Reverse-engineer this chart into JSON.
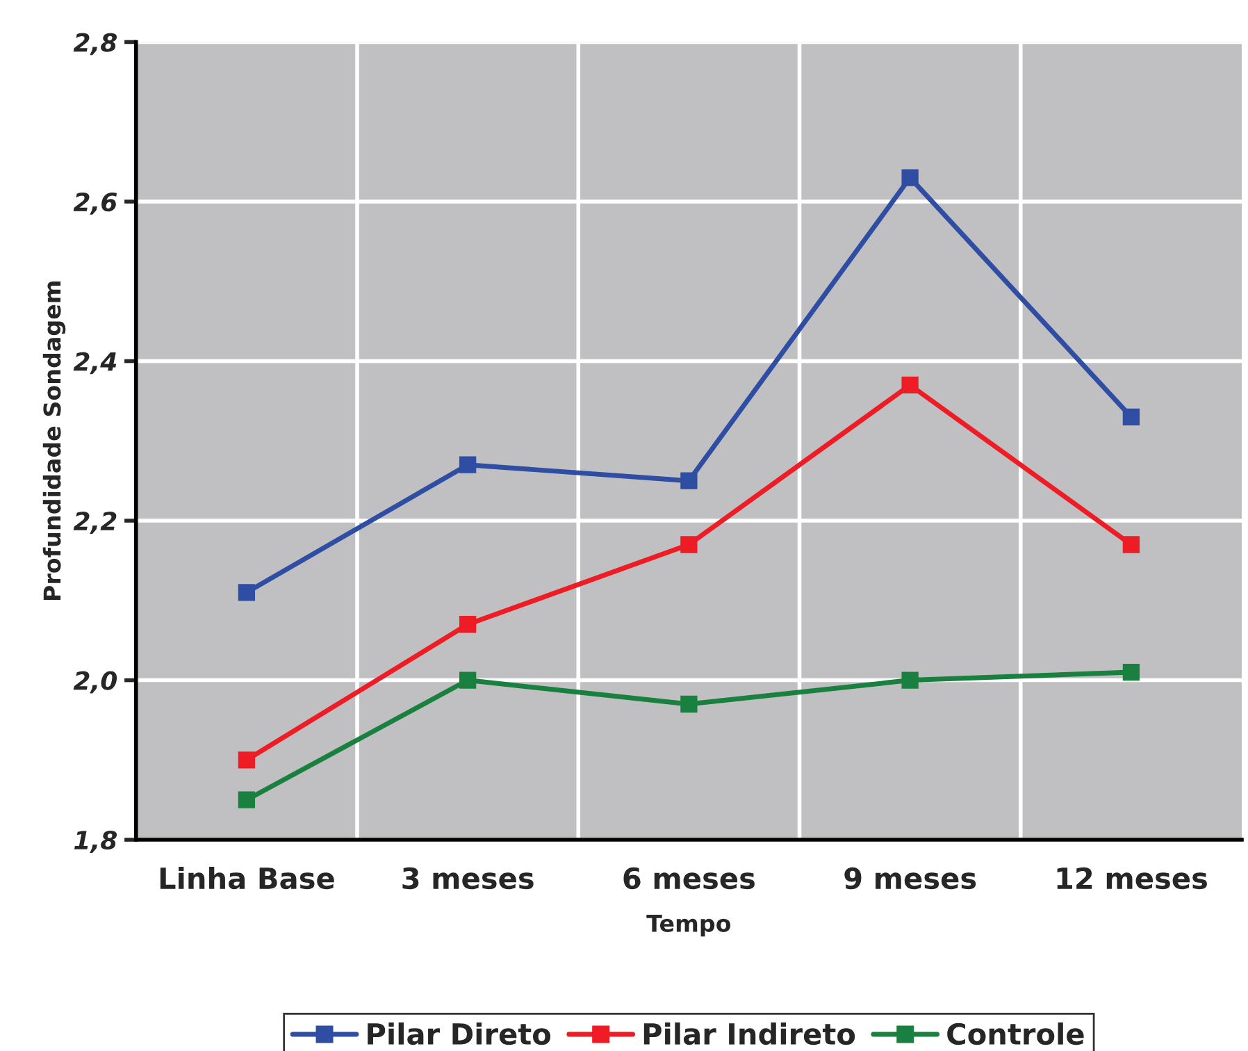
{
  "chart_data": {
    "type": "line",
    "xlabel": "Tempo",
    "ylabel": "Profundidade Sondagem",
    "categories": [
      "Linha Base",
      "3 meses",
      "6 meses",
      "9 meses",
      "12 meses"
    ],
    "series": [
      {
        "name": "Pilar Direto",
        "color": "#2f4ea3",
        "values": [
          2.11,
          2.27,
          2.25,
          2.63,
          2.33
        ]
      },
      {
        "name": "Pilar Indireto",
        "color": "#ee1c25",
        "values": [
          1.9,
          2.07,
          2.17,
          2.37,
          2.17
        ]
      },
      {
        "name": "Controle",
        "color": "#1a8040",
        "values": [
          1.85,
          2.0,
          1.97,
          2.0,
          2.01
        ]
      }
    ],
    "ylim": [
      1.8,
      2.8
    ],
    "yticks": [
      {
        "value": 1.8,
        "label": "1,8"
      },
      {
        "value": 2.0,
        "label": "2,0"
      },
      {
        "value": 2.2,
        "label": "2,2"
      },
      {
        "value": 2.4,
        "label": "2,4"
      },
      {
        "value": 2.6,
        "label": "2,6"
      },
      {
        "value": 2.8,
        "label": "2,8"
      }
    ],
    "grid": true,
    "legend": "bottom",
    "marker": "square",
    "line_style": "solid"
  }
}
